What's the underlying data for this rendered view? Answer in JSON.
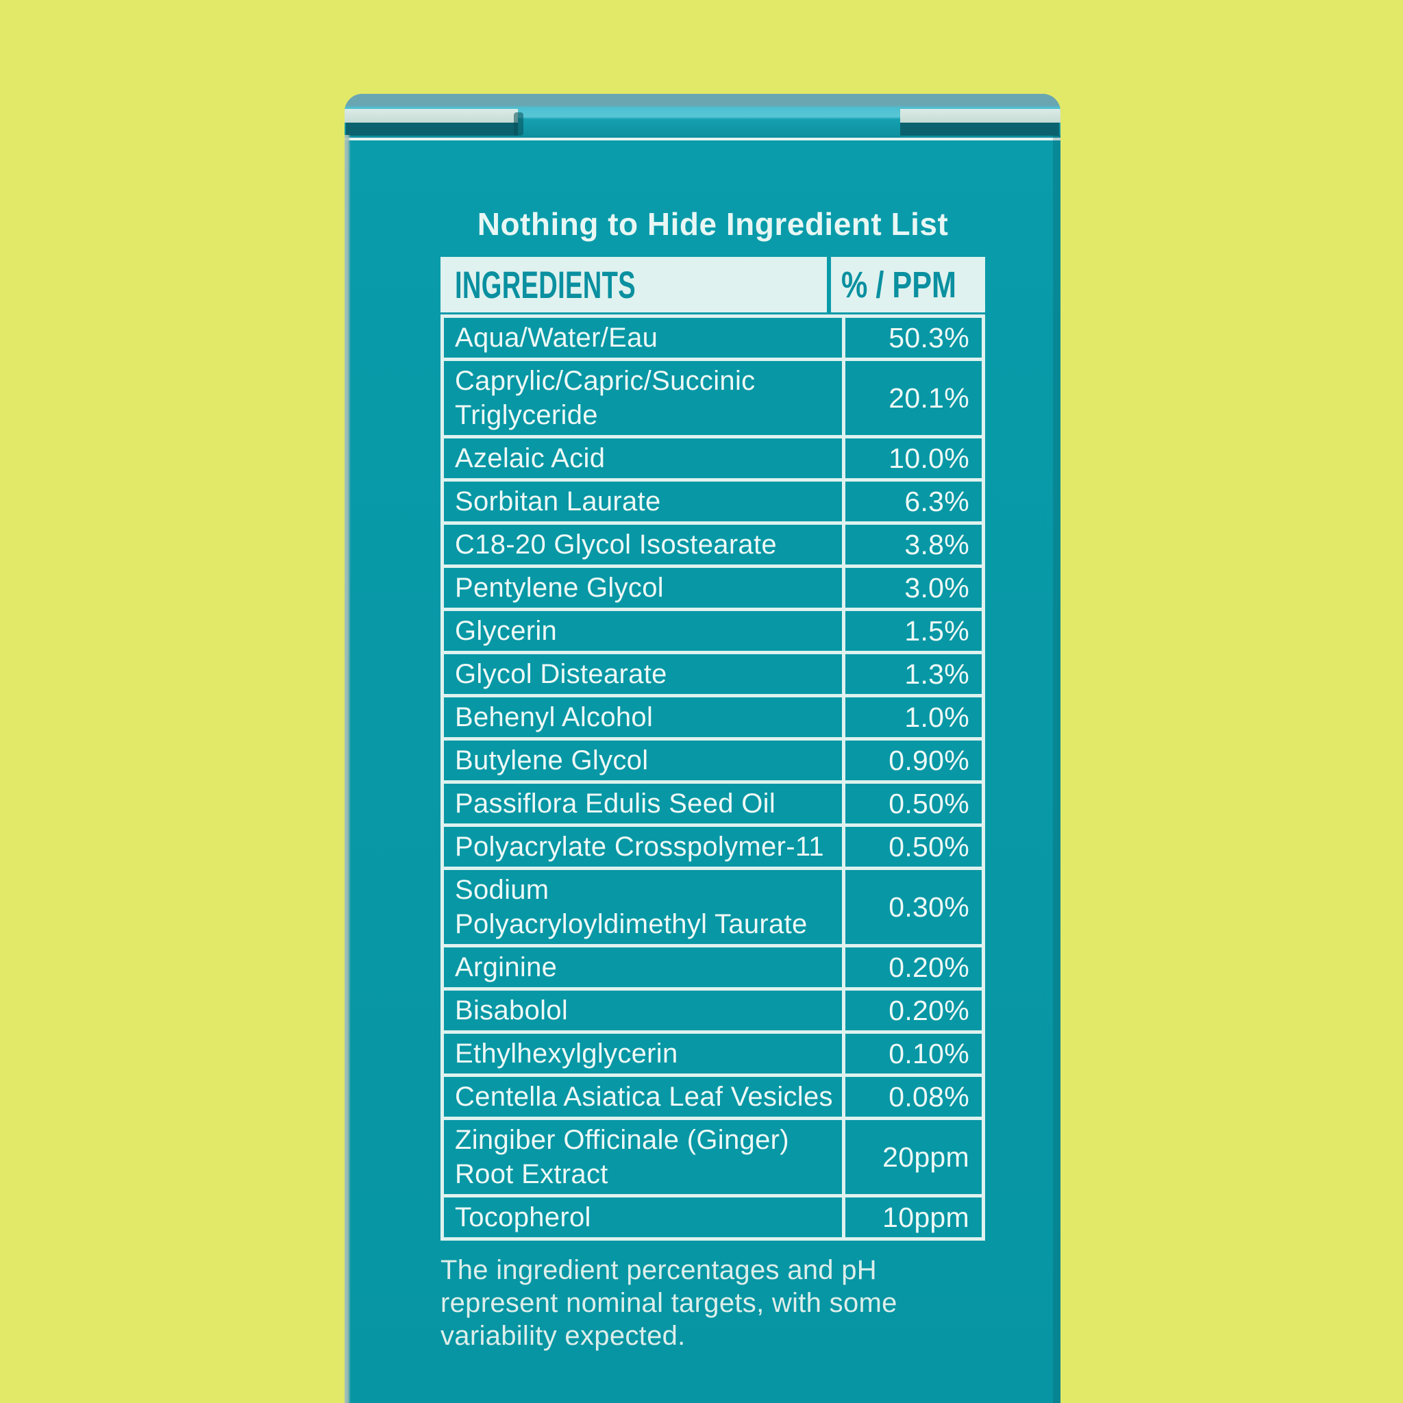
{
  "colors": {
    "background": "#e2e868",
    "box_teal": "#0897a5",
    "light_mint": "#dff2ef",
    "header_text_teal": "#0a90a0"
  },
  "title": "Nothing to Hide Ingredient List",
  "table": {
    "col_ingredients": "INGREDIENTS",
    "col_value": "% / PPM",
    "rows": [
      {
        "name_lines": [
          "Aqua/Water/Eau"
        ],
        "value": "50.3%"
      },
      {
        "name_lines": [
          "Caprylic/Capric/Succinic",
          "Triglyceride"
        ],
        "value": "20.1%"
      },
      {
        "name_lines": [
          "Azelaic Acid"
        ],
        "value": "10.0%"
      },
      {
        "name_lines": [
          "Sorbitan Laurate"
        ],
        "value": "6.3%"
      },
      {
        "name_lines": [
          "C18-20 Glycol Isostearate"
        ],
        "value": "3.8%"
      },
      {
        "name_lines": [
          "Pentylene Glycol"
        ],
        "value": "3.0%"
      },
      {
        "name_lines": [
          "Glycerin"
        ],
        "value": "1.5%"
      },
      {
        "name_lines": [
          "Glycol Distearate"
        ],
        "value": "1.3%"
      },
      {
        "name_lines": [
          "Behenyl Alcohol"
        ],
        "value": "1.0%"
      },
      {
        "name_lines": [
          "Butylene Glycol"
        ],
        "value": "0.90%"
      },
      {
        "name_lines": [
          "Passiflora Edulis Seed Oil"
        ],
        "value": "0.50%"
      },
      {
        "name_lines": [
          "Polyacrylate Crosspolymer-11"
        ],
        "value": "0.50%"
      },
      {
        "name_lines": [
          "Sodium",
          "Polyacryloyldimethyl Taurate"
        ],
        "value": "0.30%"
      },
      {
        "name_lines": [
          "Arginine"
        ],
        "value": "0.20%"
      },
      {
        "name_lines": [
          "Bisabolol"
        ],
        "value": "0.20%"
      },
      {
        "name_lines": [
          "Ethylhexylglycerin"
        ],
        "value": "0.10%"
      },
      {
        "name_lines": [
          "Centella Asiatica Leaf Vesicles"
        ],
        "value": "0.08%"
      },
      {
        "name_lines": [
          "Zingiber Officinale (Ginger)",
          "Root Extract"
        ],
        "value": "20ppm"
      },
      {
        "name_lines": [
          "Tocopherol"
        ],
        "value": "10ppm"
      }
    ]
  },
  "footnote_lines": [
    "The ingredient percentages and pH",
    "represent nominal targets, with some",
    "variability expected."
  ]
}
